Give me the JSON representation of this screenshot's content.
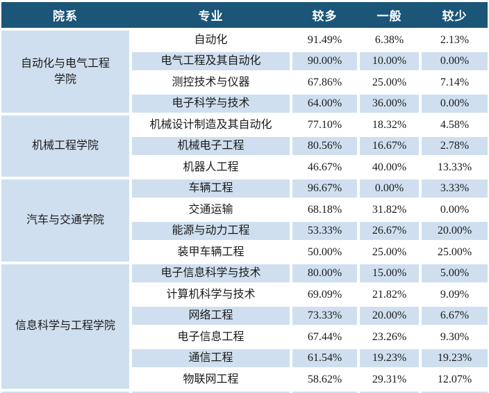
{
  "colors": {
    "header_bg": "#1B5578",
    "header_text": "#FFFFFF",
    "row_bg": "#FFFFFF",
    "row_alt_bg": "#CFDFEF",
    "body_text": "#1A1A1A"
  },
  "chart_data": {
    "type": "table",
    "columns": [
      "院系",
      "专业",
      "较多",
      "一般",
      "较少"
    ],
    "groups": [
      {
        "college": "自动化与电气工程学院",
        "rows": [
          {
            "major": "自动化",
            "more": "91.49%",
            "general": "6.38%",
            "less": "2.13%"
          },
          {
            "major": "电气工程及其自动化",
            "more": "90.00%",
            "general": "10.00%",
            "less": "0.00%"
          },
          {
            "major": "测控技术与仪器",
            "more": "67.86%",
            "general": "25.00%",
            "less": "7.14%"
          },
          {
            "major": "电子科学与技术",
            "more": "64.00%",
            "general": "36.00%",
            "less": "0.00%"
          }
        ]
      },
      {
        "college": "机械工程学院",
        "rows": [
          {
            "major": "机械设计制造及其自动化",
            "more": "77.10%",
            "general": "18.32%",
            "less": "4.58%"
          },
          {
            "major": "机械电子工程",
            "more": "80.56%",
            "general": "16.67%",
            "less": "2.78%"
          },
          {
            "major": "机器人工程",
            "more": "46.67%",
            "general": "40.00%",
            "less": "13.33%"
          }
        ]
      },
      {
        "college": "汽车与交通学院",
        "rows": [
          {
            "major": "车辆工程",
            "more": "96.67%",
            "general": "0.00%",
            "less": "3.33%"
          },
          {
            "major": "交通运输",
            "more": "68.18%",
            "general": "31.82%",
            "less": "0.00%"
          },
          {
            "major": "能源与动力工程",
            "more": "53.33%",
            "general": "26.67%",
            "less": "20.00%"
          },
          {
            "major": "装甲车辆工程",
            "more": "50.00%",
            "general": "25.00%",
            "less": "25.00%"
          }
        ]
      },
      {
        "college": "信息科学与工程学院",
        "rows": [
          {
            "major": "电子信息科学与技术",
            "more": "80.00%",
            "general": "15.00%",
            "less": "5.00%"
          },
          {
            "major": "计算机科学与技术",
            "more": "69.09%",
            "general": "21.82%",
            "less": "9.09%"
          },
          {
            "major": "网络工程",
            "more": "73.33%",
            "general": "20.00%",
            "less": "6.67%"
          },
          {
            "major": "电子信息工程",
            "more": "67.44%",
            "general": "23.26%",
            "less": "9.30%"
          },
          {
            "major": "通信工程",
            "more": "61.54%",
            "general": "19.23%",
            "less": "19.23%"
          },
          {
            "major": "物联网工程",
            "more": "58.62%",
            "general": "29.31%",
            "less": "12.07%"
          }
        ]
      }
    ]
  }
}
